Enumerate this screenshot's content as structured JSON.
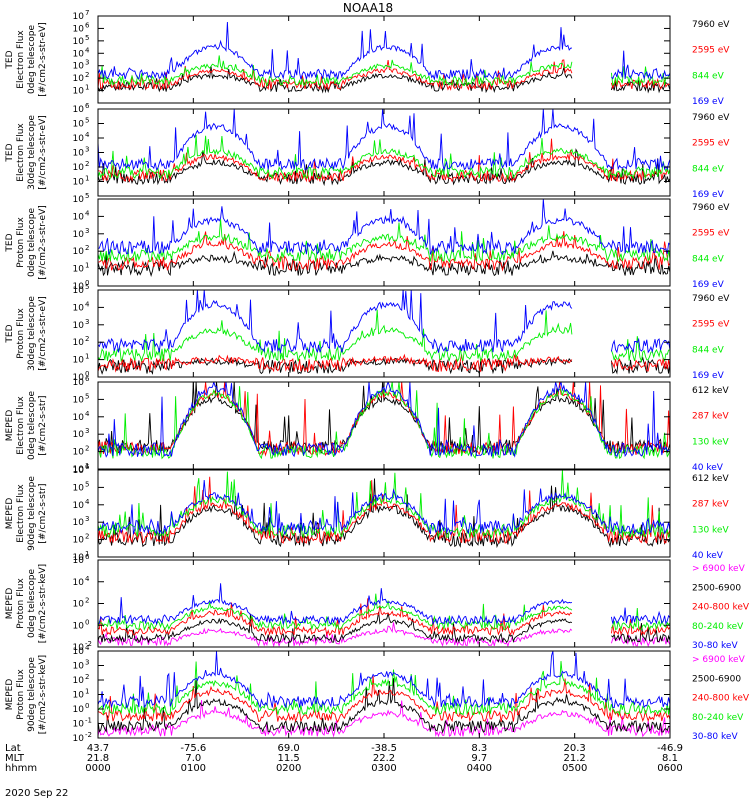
{
  "title": "NOAA18",
  "date_label": "2020 Sep 22",
  "colors": {
    "black": "#000000",
    "red": "#ff0000",
    "green": "#00ee00",
    "blue": "#0000ff",
    "magenta": "#ff00ff"
  },
  "xaxis": {
    "row_labels": [
      "Lat",
      "MLT",
      "hhmm"
    ],
    "ticks": [
      {
        "lat": "43.7",
        "mlt": "21.8",
        "hhmm": "0000"
      },
      {
        "lat": "-75.6",
        "mlt": "7.0",
        "hhmm": "0100"
      },
      {
        "lat": "69.0",
        "mlt": "11.5",
        "hhmm": "0200"
      },
      {
        "lat": "-38.5",
        "mlt": "22.2",
        "hhmm": "0300"
      },
      {
        "lat": "8.3",
        "mlt": "9.7",
        "hhmm": "0400"
      },
      {
        "lat": "20.3",
        "mlt": "21.2",
        "hhmm": "0500"
      },
      {
        "lat": "-46.9",
        "mlt": "8.1",
        "hhmm": "0600"
      }
    ]
  },
  "chart_data": [
    {
      "type": "line",
      "log_y": true,
      "ylabel": [
        "TED",
        "Electron Flux",
        "0deg telescope",
        "[#/cm2-s-str-eV]"
      ],
      "ytick_exponents": [
        1,
        2,
        3,
        4,
        5,
        6,
        7
      ],
      "ylim": [
        1,
        10000000
      ],
      "xlim": [
        "0000",
        "0600"
      ],
      "series": [
        {
          "name": "7960 eV",
          "color": "black",
          "level": 1.3,
          "peak": 2.2
        },
        {
          "name": "2595 eV",
          "color": "red",
          "level": 1.5,
          "peak": 2.6
        },
        {
          "name": "844 eV",
          "color": "green",
          "level": 1.8,
          "peak": 3.0
        },
        {
          "name": "169 eV",
          "color": "blue",
          "level": 2.3,
          "peak": 4.5
        }
      ]
    },
    {
      "type": "line",
      "log_y": true,
      "ylabel": [
        "TED",
        "Electron Flux",
        "30deg telescope",
        "[#/cm2-s-str-eV]"
      ],
      "ytick_exponents": [
        1,
        2,
        3,
        4,
        5,
        6
      ],
      "ylim": [
        1,
        1000000
      ],
      "xlim": [
        "0000",
        "0600"
      ],
      "series": [
        {
          "name": "7960 eV",
          "color": "black",
          "level": 1.2,
          "peak": 2.3
        },
        {
          "name": "2595 eV",
          "color": "red",
          "level": 1.4,
          "peak": 2.7
        },
        {
          "name": "844 eV",
          "color": "green",
          "level": 1.6,
          "peak": 3.1
        },
        {
          "name": "169 eV",
          "color": "blue",
          "level": 2.2,
          "peak": 4.8
        }
      ]
    },
    {
      "type": "line",
      "log_y": true,
      "ylabel": [
        "TED",
        "Proton Flux",
        "0deg telescope",
        "[#/cm2-s-str-eV]"
      ],
      "ytick_exponents": [
        0,
        1,
        2,
        3,
        4,
        5
      ],
      "ylim": [
        1,
        100000
      ],
      "xlim": [
        "0000",
        "0600"
      ],
      "series": [
        {
          "name": "7960 eV",
          "color": "black",
          "level": 1.0,
          "peak": 1.6
        },
        {
          "name": "2595 eV",
          "color": "red",
          "level": 1.3,
          "peak": 2.4
        },
        {
          "name": "844 eV",
          "color": "green",
          "level": 1.8,
          "peak": 2.8
        },
        {
          "name": "169 eV",
          "color": "blue",
          "level": 2.2,
          "peak": 3.8
        }
      ]
    },
    {
      "type": "line",
      "log_y": true,
      "ylabel": [
        "TED",
        "Proton Flux",
        "30deg telescope",
        "[#/cm2-s-str-eV]"
      ],
      "ytick_exponents": [
        0,
        1,
        2,
        3,
        4,
        5
      ],
      "ylim": [
        1,
        100000
      ],
      "xlim": [
        "0000",
        "0600"
      ],
      "series": [
        {
          "name": "7960 eV",
          "color": "black",
          "level": 0.6,
          "peak": 0.9
        },
        {
          "name": "2595 eV",
          "color": "red",
          "level": 0.7,
          "peak": 1.0
        },
        {
          "name": "844 eV",
          "color": "green",
          "level": 1.3,
          "peak": 2.7
        },
        {
          "name": "169 eV",
          "color": "blue",
          "level": 1.8,
          "peak": 4.2
        }
      ]
    },
    {
      "type": "line",
      "log_y": true,
      "ylabel": [
        "MEPED",
        "Electron Flux",
        "0deg telescope",
        "[#/cm2-s-str]"
      ],
      "ytick_exponents": [
        1,
        2,
        3,
        4,
        5,
        6
      ],
      "ylim": [
        10,
        1000000
      ],
      "xlim": [
        "0000",
        "0600"
      ],
      "series": [
        {
          "name": "612 keV",
          "color": "black",
          "level": 2.3,
          "peak": 5.0
        },
        {
          "name": "287 keV",
          "color": "red",
          "level": 2.2,
          "peak": 5.3
        },
        {
          "name": "130 keV",
          "color": "green",
          "level": 2.0,
          "peak": 5.4
        },
        {
          "name": "40 keV",
          "color": "blue",
          "level": 2.1,
          "peak": 5.6
        }
      ]
    },
    {
      "type": "line",
      "log_y": true,
      "ylabel": [
        "MEPED",
        "Electron Flux",
        "90deg telescope",
        "[#/cm2-s-str]"
      ],
      "ytick_exponents": [
        1,
        2,
        3,
        4,
        5,
        6
      ],
      "ylim": [
        10,
        1000000
      ],
      "xlim": [
        "0000",
        "0600"
      ],
      "series": [
        {
          "name": "612 keV",
          "color": "black",
          "level": 2.0,
          "peak": 3.8
        },
        {
          "name": "287 keV",
          "color": "red",
          "level": 2.2,
          "peak": 4.0
        },
        {
          "name": "130 keV",
          "color": "green",
          "level": 2.5,
          "peak": 4.3
        },
        {
          "name": "40 keV",
          "color": "blue",
          "level": 2.7,
          "peak": 4.5
        }
      ]
    },
    {
      "type": "line",
      "log_y": true,
      "ylabel": [
        "MEPED",
        "Proton Flux",
        "0deg telescope",
        "[#/cm2-s-str-keV]"
      ],
      "ytick_exponents": [
        -2,
        0,
        2,
        4,
        6
      ],
      "ylim": [
        0.01,
        1000000
      ],
      "xlim": [
        "0000",
        "0600"
      ],
      "series": [
        {
          "name": "> 6900 keV",
          "color": "magenta",
          "level": -1.5,
          "peak": -0.5
        },
        {
          "name": "2500-6900",
          "color": "black",
          "level": -1.2,
          "peak": 0.4
        },
        {
          "name": "240-800 keV",
          "color": "red",
          "level": -0.5,
          "peak": 1.1
        },
        {
          "name": "80-240 keV",
          "color": "green",
          "level": 0.0,
          "peak": 1.6
        },
        {
          "name": "30-80 keV",
          "color": "blue",
          "level": 0.5,
          "peak": 2.2
        }
      ]
    },
    {
      "type": "line",
      "log_y": true,
      "ylabel": [
        "MEPED",
        "Proton Flux",
        "90deg telescope",
        "[#/cm2-s-str-keV]"
      ],
      "ytick_exponents": [
        -2,
        -1,
        0,
        1,
        2,
        3,
        4
      ],
      "ylim": [
        0.01,
        10000
      ],
      "xlim": [
        "0000",
        "0600"
      ],
      "series": [
        {
          "name": "> 6900 keV",
          "color": "magenta",
          "level": -1.5,
          "peak": -0.3
        },
        {
          "name": "2500-6900",
          "color": "black",
          "level": -1.2,
          "peak": 0.5
        },
        {
          "name": "240-800 keV",
          "color": "red",
          "level": -0.5,
          "peak": 1.2
        },
        {
          "name": "80-240 keV",
          "color": "green",
          "level": 0.0,
          "peak": 1.8
        },
        {
          "name": "30-80 keV",
          "color": "blue",
          "level": 0.5,
          "peak": 2.4
        }
      ]
    }
  ]
}
